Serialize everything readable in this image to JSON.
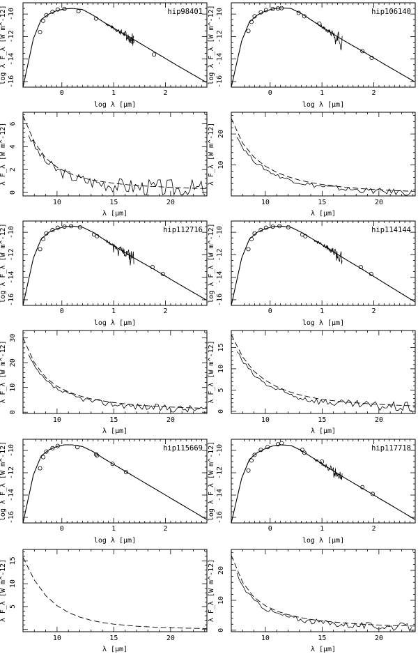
{
  "figure": {
    "stars": [
      "hip98401",
      "hip106140",
      "hip112716",
      "hip114144",
      "hip115669",
      "hip117718"
    ],
    "sed_axes": {
      "xlabel": "log λ [μm]",
      "ylabel": "log λ F_λ [W m^-12]",
      "x_ticks": [
        0,
        1,
        2
      ],
      "y_ticks": [
        -16,
        -14,
        -12,
        -10
      ],
      "xlim": [
        -0.75,
        2.8
      ],
      "ylim": [
        -16.5,
        -9.0
      ]
    },
    "ir_axes": {
      "xlabel": "λ [μm]",
      "ylabel": "λ F_λ [W m^-12]",
      "x_ticks": [
        10,
        15,
        20
      ],
      "xlim": [
        7.0,
        23.2
      ]
    }
  },
  "chart_data": [
    {
      "type": "line",
      "panel": "sed",
      "label": "hip98401",
      "log_scale": true,
      "series": [
        {
          "x": [
            -0.75,
            -0.55,
            -0.4,
            -0.25,
            -0.1,
            0.05,
            0.2,
            0.4,
            0.6,
            0.8,
            1.0,
            1.4,
            1.8,
            2.2,
            2.8
          ],
          "y": [
            -16.5,
            -12.2,
            -10.5,
            -10.0,
            -9.7,
            -9.55,
            -9.5,
            -9.6,
            -10.1,
            -10.7,
            -11.25,
            -12.3,
            -13.4,
            -14.5,
            -16.1
          ]
        }
      ],
      "photometry": {
        "x": [
          -0.42,
          -0.36,
          -0.3,
          -0.18,
          -0.08,
          0.05,
          0.32,
          0.66,
          1.36,
          1.78
        ],
        "y": [
          -11.6,
          -10.6,
          -10.1,
          -9.8,
          -9.6,
          -9.55,
          -9.75,
          -10.4,
          -12.45,
          -13.6
        ]
      },
      "spectrum": {
        "x_range": [
          0.85,
          1.4
        ]
      }
    },
    {
      "type": "line",
      "panel": "ir",
      "label": "hip98401",
      "y_ticks": [
        0,
        2,
        4,
        6
      ],
      "ylim": [
        -0.3,
        7.0
      ],
      "model": {
        "x": [
          7,
          8,
          9,
          10,
          11,
          12,
          13,
          14,
          15,
          17,
          19,
          21,
          23
        ],
        "y": [
          6.7,
          4.4,
          3.0,
          2.2,
          1.7,
          1.35,
          1.1,
          0.95,
          0.8,
          0.6,
          0.5,
          0.4,
          0.35
        ]
      },
      "observed": {
        "x_range": [
          7.5,
          23.0
        ],
        "mean": [
          4.3,
          0.7
        ],
        "noise": 0.6
      }
    },
    {
      "type": "line",
      "panel": "sed",
      "label": "hip106140",
      "log_scale": true,
      "series": [
        {
          "x": [
            -0.75,
            -0.55,
            -0.4,
            -0.25,
            -0.1,
            0.05,
            0.2,
            0.4,
            0.6,
            0.8,
            1.0,
            1.4,
            1.8,
            2.2,
            2.8
          ],
          "y": [
            -16.5,
            -12.4,
            -10.7,
            -10.1,
            -9.75,
            -9.55,
            -9.45,
            -9.5,
            -9.95,
            -10.55,
            -11.15,
            -12.3,
            -13.35,
            -14.45,
            -16.05
          ]
        }
      ],
      "photometry": {
        "x": [
          -0.42,
          -0.36,
          -0.3,
          -0.18,
          -0.08,
          0.05,
          0.15,
          0.22,
          0.55,
          0.66,
          0.95,
          1.78,
          1.96
        ],
        "y": [
          -11.5,
          -10.7,
          -10.2,
          -9.85,
          -9.65,
          -9.55,
          -9.5,
          -9.48,
          -9.9,
          -10.2,
          -10.85,
          -13.3,
          -13.9
        ]
      },
      "spectrum": {
        "x_range": [
          0.9,
          1.4
        ]
      }
    },
    {
      "type": "line",
      "panel": "ir",
      "label": "hip106140",
      "y_ticks": [
        10,
        20
      ],
      "ylim": [
        0.0,
        27.0
      ],
      "model": {
        "x": [
          7,
          8,
          9,
          10,
          11,
          12,
          13,
          14,
          15,
          17,
          19,
          21,
          23
        ],
        "y": [
          25.0,
          17.0,
          12.5,
          9.6,
          7.6,
          6.2,
          5.1,
          4.3,
          3.7,
          2.8,
          2.2,
          1.8,
          1.5
        ]
      },
      "observed": {
        "x_range": [
          7.5,
          23.0
        ],
        "mean": [
          18.0,
          0.3
        ],
        "noise": 0.7
      }
    },
    {
      "type": "line",
      "panel": "sed",
      "label": "hip112716",
      "log_scale": true,
      "series": [
        {
          "x": [
            -0.75,
            -0.55,
            -0.4,
            -0.25,
            -0.1,
            0.05,
            0.2,
            0.4,
            0.6,
            0.8,
            1.0,
            1.4,
            1.8,
            2.2,
            2.8
          ],
          "y": [
            -16.5,
            -12.3,
            -10.6,
            -10.0,
            -9.7,
            -9.5,
            -9.45,
            -9.55,
            -10.0,
            -10.6,
            -11.2,
            -12.3,
            -13.35,
            -14.45,
            -16.05
          ]
        }
      ],
      "photometry": {
        "x": [
          -0.42,
          -0.36,
          -0.3,
          -0.18,
          -0.08,
          0.05,
          0.18,
          0.35,
          0.62,
          0.68,
          1.75,
          1.95
        ],
        "y": [
          -11.5,
          -10.6,
          -10.1,
          -9.8,
          -9.6,
          -9.5,
          -9.45,
          -9.55,
          -10.2,
          -10.35,
          -13.1,
          -13.7
        ]
      },
      "spectrum": {
        "x_range": [
          0.85,
          1.4
        ]
      }
    },
    {
      "type": "line",
      "panel": "ir",
      "label": "hip112716",
      "y_ticks": [
        0,
        10,
        20,
        30
      ],
      "ylim": [
        -0.5,
        33.0
      ],
      "model": {
        "x": [
          7,
          8,
          9,
          10,
          11,
          12,
          13,
          14,
          15,
          17,
          19,
          21,
          23
        ],
        "y": [
          30.0,
          20.0,
          14.0,
          10.5,
          8.2,
          6.6,
          5.4,
          4.6,
          3.9,
          2.9,
          2.3,
          1.9,
          1.6
        ]
      },
      "observed": {
        "x_range": [
          7.5,
          23.0
        ],
        "mean": [
          24.0,
          1.0
        ],
        "noise": 1.1
      }
    },
    {
      "type": "line",
      "panel": "sed",
      "label": "hip114144",
      "log_scale": true,
      "series": [
        {
          "x": [
            -0.75,
            -0.55,
            -0.4,
            -0.25,
            -0.1,
            0.05,
            0.2,
            0.4,
            0.6,
            0.8,
            1.0,
            1.4,
            1.8,
            2.2,
            2.8
          ],
          "y": [
            -16.5,
            -12.3,
            -10.6,
            -10.0,
            -9.7,
            -9.5,
            -9.45,
            -9.55,
            -10.0,
            -10.55,
            -11.1,
            -12.25,
            -13.35,
            -14.5,
            -16.2
          ]
        }
      ],
      "photometry": {
        "x": [
          -0.42,
          -0.36,
          -0.3,
          -0.18,
          -0.08,
          0.05,
          0.18,
          0.35,
          0.62,
          0.68,
          1.75,
          1.95
        ],
        "y": [
          -11.5,
          -10.6,
          -10.1,
          -9.8,
          -9.6,
          -9.5,
          -9.45,
          -9.55,
          -10.2,
          -10.35,
          -13.1,
          -13.7
        ]
      },
      "spectrum": {
        "x_range": [
          0.85,
          1.4
        ]
      }
    },
    {
      "type": "line",
      "panel": "ir",
      "label": "hip114144",
      "y_ticks": [
        0,
        5,
        10,
        15
      ],
      "ylim": [
        -0.5,
        19.0
      ],
      "model": {
        "x": [
          7,
          8,
          9,
          10,
          11,
          12,
          13,
          14,
          15,
          17,
          19,
          21,
          23
        ],
        "y": [
          18.0,
          12.8,
          9.4,
          7.3,
          5.8,
          4.7,
          3.9,
          3.3,
          2.8,
          2.2,
          1.8,
          1.5,
          1.3
        ]
      },
      "observed": {
        "x_range": [
          7.5,
          23.0
        ],
        "mean": [
          14.0,
          0.8
        ],
        "noise": 0.8
      }
    },
    {
      "type": "line",
      "panel": "sed",
      "label": "hip115669",
      "log_scale": true,
      "series": [
        {
          "x": [
            -0.75,
            -0.55,
            -0.4,
            -0.25,
            -0.1,
            0.05,
            0.2,
            0.4,
            0.6,
            0.8,
            1.0,
            1.4,
            1.8,
            2.2,
            2.8
          ],
          "y": [
            -16.5,
            -12.2,
            -10.5,
            -9.95,
            -9.65,
            -9.5,
            -9.5,
            -9.65,
            -10.1,
            -10.7,
            -11.25,
            -12.35,
            -13.45,
            -14.55,
            -16.2
          ]
        }
      ],
      "photometry": {
        "x": [
          -0.42,
          -0.36,
          -0.3,
          -0.18,
          -0.08,
          0.3,
          0.66,
          0.68,
          0.98,
          1.24
        ],
        "y": [
          -11.6,
          -10.6,
          -10.1,
          -9.8,
          -9.6,
          -9.7,
          -10.35,
          -10.45,
          -11.2,
          -11.95
        ]
      },
      "spectrum": null
    },
    {
      "type": "line",
      "panel": "ir",
      "label": "hip115669",
      "y_ticks": [
        5,
        10,
        15
      ],
      "ylim": [
        -0.5,
        17.5
      ],
      "model": {
        "x": [
          7,
          8,
          9,
          10,
          11,
          12,
          13,
          14,
          15,
          17,
          19,
          21,
          23
        ],
        "y": [
          15.8,
          10.8,
          7.4,
          5.2,
          3.7,
          2.7,
          2.0,
          1.5,
          1.15,
          0.7,
          0.45,
          0.3,
          0.2
        ]
      },
      "observed": null
    },
    {
      "type": "line",
      "panel": "sed",
      "label": "hip117718",
      "log_scale": true,
      "series": [
        {
          "x": [
            -0.75,
            -0.55,
            -0.4,
            -0.25,
            -0.1,
            0.05,
            0.2,
            0.4,
            0.6,
            0.8,
            1.0,
            1.4,
            1.8,
            2.2,
            2.8
          ],
          "y": [
            -16.5,
            -12.5,
            -10.8,
            -10.2,
            -9.85,
            -9.6,
            -9.5,
            -9.55,
            -10.0,
            -10.6,
            -11.2,
            -12.35,
            -13.45,
            -14.55,
            -16.2
          ]
        }
      ],
      "photometry": {
        "x": [
          -0.42,
          -0.36,
          -0.3,
          -0.18,
          -0.05,
          0.15,
          0.22,
          0.62,
          0.66,
          1.0,
          1.78,
          1.98
        ],
        "y": [
          -11.8,
          -10.9,
          -10.4,
          -9.95,
          -9.7,
          -9.45,
          -9.35,
          -9.95,
          -10.2,
          -11.0,
          -13.3,
          -13.9
        ]
      },
      "spectrum": {
        "x_range": [
          0.85,
          1.4
        ]
      }
    },
    {
      "type": "line",
      "panel": "ir",
      "label": "hip117718",
      "y_ticks": [
        0,
        10,
        20
      ],
      "ylim": [
        -0.5,
        27.0
      ],
      "model": {
        "x": [
          7,
          8,
          9,
          10,
          11,
          12,
          13,
          14,
          15,
          17,
          19,
          21,
          23
        ],
        "y": [
          25.0,
          16.0,
          11.0,
          8.2,
          6.4,
          5.2,
          4.3,
          3.6,
          3.1,
          2.4,
          1.9,
          1.6,
          1.4
        ]
      },
      "observed": {
        "x_range": [
          7.5,
          23.0
        ],
        "mean": [
          22.0,
          1.2
        ],
        "noise": 0.9
      }
    }
  ]
}
